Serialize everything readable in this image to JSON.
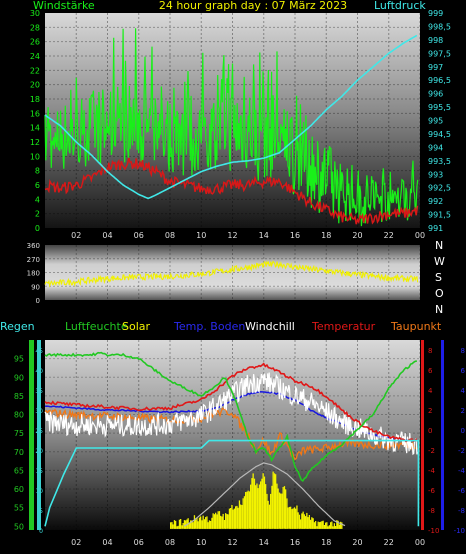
{
  "title": "24 hour graph day : 07 März 2023",
  "colors": {
    "wind": "#19f019",
    "pressure": "#40e8e8",
    "gust_red": "#d81818",
    "winddir": "#f0f000",
    "humidity": "#22c822",
    "solar": "#f2f200",
    "soiltemp": "#1818e0",
    "windchill": "#ffffff",
    "temperature": "#e01818",
    "dewpoint": "#f07818",
    "rain": "#40e8e8",
    "right_axis2": "#1e1ee8"
  },
  "chart_data": [
    {
      "type": "line",
      "left_label": "Windstärke",
      "right_label": "Luftdruck",
      "x_ticks": [
        "02",
        "04",
        "06",
        "08",
        "10",
        "12",
        "14",
        "16",
        "18",
        "20",
        "22",
        "00"
      ],
      "y_left_ticks": [
        "0",
        "2",
        "4",
        "6",
        "8",
        "10",
        "12",
        "14",
        "16",
        "18",
        "20",
        "22",
        "24",
        "26",
        "28",
        "30"
      ],
      "y_left_range": [
        0,
        30
      ],
      "y_right_ticks": [
        "991",
        "991,5",
        "992",
        "992,5",
        "993",
        "993,5",
        "994",
        "994,5",
        "995",
        "995,5",
        "996",
        "996,5",
        "997",
        "997,5",
        "998",
        "998,5",
        "999"
      ],
      "y_right_range": [
        991,
        999
      ],
      "x_range": [
        0,
        24
      ],
      "series": [
        {
          "key": "pressure",
          "axis": "right",
          "x": [
            0,
            1,
            2,
            3,
            4,
            5,
            6,
            6.6,
            7,
            8,
            9,
            10,
            11,
            12,
            13,
            14,
            15,
            16,
            17,
            18,
            19,
            20,
            21,
            22,
            23,
            23.9
          ],
          "values": [
            995.2,
            994.8,
            994.2,
            993.7,
            993.1,
            992.6,
            992.25,
            992.1,
            992.2,
            992.5,
            992.8,
            993.1,
            993.3,
            993.45,
            993.5,
            993.6,
            993.8,
            994.3,
            994.8,
            995.4,
            995.9,
            996.5,
            997.0,
            997.5,
            997.9,
            998.2
          ]
        },
        {
          "key": "wind",
          "axis": "left",
          "x": [
            0,
            1,
            2,
            3,
            4,
            5,
            6,
            7,
            8,
            9,
            10,
            11,
            12,
            13,
            14,
            15,
            16,
            17,
            18,
            19,
            20,
            21,
            22,
            23,
            23.9
          ],
          "values": [
            12,
            13,
            13.5,
            14,
            15,
            15,
            15,
            14,
            13,
            13.5,
            13,
            13,
            14,
            14,
            13,
            13,
            11,
            9,
            7,
            5.5,
            4.5,
            4,
            4.5,
            4.5,
            5
          ],
          "min": [
            7,
            8,
            8,
            8,
            9,
            9,
            9,
            8,
            7,
            7,
            7,
            7,
            7,
            7,
            6,
            6,
            4,
            2,
            1,
            0.5,
            0,
            0,
            0.5,
            1,
            1
          ],
          "max": [
            20,
            24,
            22,
            25,
            26,
            29,
            28,
            25,
            24,
            24,
            25,
            24,
            25,
            25,
            26,
            27,
            22,
            18,
            12,
            9,
            9,
            9,
            9,
            9,
            10
          ]
        },
        {
          "key": "gust_red",
          "axis": "left",
          "x": [
            0,
            1,
            2,
            3,
            4,
            5,
            6,
            7,
            8,
            9,
            10,
            11,
            12,
            13,
            14,
            15,
            16,
            17,
            18,
            19,
            20,
            21,
            22,
            23,
            23.9
          ],
          "values": [
            6,
            5.5,
            6,
            7,
            8.5,
            9,
            9,
            8,
            6.5,
            6,
            5.5,
            5.5,
            6,
            6,
            6.5,
            6.5,
            5,
            3.5,
            2.5,
            1.5,
            1,
            1.5,
            2,
            2,
            2.5
          ]
        }
      ]
    },
    {
      "type": "line",
      "right_letters": [
        "N",
        "W",
        "S",
        "O",
        "N"
      ],
      "y_left_ticks": [
        "0",
        "90",
        "180",
        "270",
        "360"
      ],
      "y_range": [
        0,
        360
      ],
      "x_range": [
        0,
        24
      ],
      "series": [
        {
          "key": "winddir",
          "x": [
            0,
            2,
            4,
            6,
            8,
            10,
            12,
            14,
            15,
            16,
            18,
            20,
            22,
            23.9
          ],
          "values": [
            105,
            120,
            140,
            150,
            155,
            170,
            200,
            230,
            235,
            215,
            190,
            165,
            145,
            135
          ]
        }
      ]
    },
    {
      "type": "line",
      "legend": [
        "Regen",
        "Luftfeuchte",
        "Solar",
        "Temp. Boden",
        "Windchill",
        "Temperatur",
        "Taupunkt"
      ],
      "x_ticks": [
        "02",
        "04",
        "06",
        "08",
        "10",
        "12",
        "14",
        "16",
        "18",
        "20",
        "22",
        "00"
      ],
      "y_left_ticks": [
        "50",
        "55",
        "60",
        "65",
        "70",
        "75",
        "80",
        "85",
        "90",
        "95"
      ],
      "y_left_range": [
        49,
        100
      ],
      "y_right_ticks": [
        "-10",
        "-8",
        "-6",
        "-4",
        "-2",
        "0",
        "2",
        "4",
        "6",
        "8"
      ],
      "y_right_range": [
        -10,
        9
      ],
      "rain_ticks": [
        "0",
        "5",
        "10",
        "15",
        "20",
        "25",
        "30",
        "35",
        "40",
        "45"
      ],
      "x_range": [
        0,
        24
      ],
      "series": [
        {
          "key": "humidity",
          "axis": "left",
          "x": [
            0,
            1,
            2,
            3,
            3.5,
            4,
            5,
            6,
            7,
            8,
            9,
            10,
            11,
            11.5,
            12,
            12.5,
            13,
            13.5,
            14,
            14.5,
            15,
            15.5,
            16,
            16.5,
            17,
            18,
            19,
            20,
            21,
            22,
            23,
            23.9
          ],
          "values": [
            96,
            96,
            96,
            96,
            96.5,
            96,
            96,
            95,
            92,
            89,
            87,
            85,
            88,
            90,
            86,
            80,
            74,
            70,
            71,
            68,
            71,
            74,
            66,
            62,
            65,
            69,
            72,
            76,
            80,
            87,
            92,
            95
          ]
        },
        {
          "key": "rain",
          "axis": "left",
          "x": [
            0,
            0.3,
            1.2,
            2,
            2.6,
            8,
            10,
            10.5,
            11,
            12,
            14,
            16,
            18,
            20,
            22,
            23.8,
            23.9,
            23.9
          ],
          "values": [
            50,
            55,
            64,
            71,
            71,
            71,
            71,
            73,
            73,
            73,
            73,
            73,
            73,
            73,
            73,
            73,
            73,
            50
          ]
        },
        {
          "key": "soiltemp",
          "axis": "right",
          "x": [
            0,
            2,
            4,
            6,
            8,
            10,
            11,
            12,
            13,
            14,
            15,
            16,
            17,
            18,
            19,
            20,
            21,
            22,
            23,
            23.9
          ],
          "values": [
            2.4,
            2.2,
            2.0,
            1.9,
            1.8,
            1.9,
            2.2,
            3.0,
            3.6,
            3.8,
            3.6,
            3.0,
            2.0,
            1.2,
            0.6,
            0.0,
            -0.5,
            -0.8,
            -1.0,
            -1.1
          ]
        },
        {
          "key": "temperature",
          "axis": "right",
          "x": [
            0,
            2,
            4,
            6,
            8,
            10,
            11,
            12,
            13,
            14,
            15,
            16,
            17,
            18,
            19,
            20,
            21,
            22,
            23,
            23.9
          ],
          "values": [
            2.8,
            2.5,
            2.3,
            2.1,
            2.2,
            3.0,
            4.1,
            5.4,
            6.2,
            6.5,
            5.8,
            4.9,
            4.4,
            3.4,
            2.0,
            0.8,
            -0.1,
            -0.7,
            -1.0,
            -1.0
          ]
        },
        {
          "key": "windchill",
          "axis": "right",
          "x": [
            0,
            2,
            4,
            6,
            8,
            10,
            11,
            12,
            13,
            14,
            15,
            16,
            17,
            18,
            19,
            20,
            21,
            22,
            23,
            23.9
          ],
          "values": [
            0.8,
            0.5,
            0.5,
            0.4,
            0.6,
            1.4,
            2.4,
            3.5,
            4.6,
            5.0,
            4.2,
            3.4,
            2.8,
            1.8,
            0.8,
            0.2,
            -0.5,
            -1.0,
            -1.3,
            -1.4
          ]
        },
        {
          "key": "dewpoint",
          "axis": "right",
          "x": [
            0,
            2,
            4,
            6,
            8,
            10,
            11,
            12,
            12.5,
            13,
            13.5,
            14,
            14.5,
            15,
            15.5,
            16,
            16.5,
            17,
            18,
            19,
            20,
            21,
            22,
            23,
            23.9
          ],
          "values": [
            1.8,
            1.5,
            1.4,
            1.2,
            1.0,
            1.2,
            1.8,
            1.8,
            0.5,
            -0.5,
            -2.0,
            -1.0,
            -2.5,
            -0.5,
            -1.5,
            -3.0,
            -2.0,
            -2.0,
            -1.8,
            -1.4,
            -1.4,
            -1.5,
            -1.5,
            -1.5,
            -1.5
          ]
        },
        {
          "key": "solar_curve",
          "axis": "left",
          "x": [
            8.9,
            9.5,
            10.5,
            11.5,
            12.5,
            13.5,
            14,
            14.5,
            15.5,
            16.5,
            17.5,
            18.5,
            19.3
          ],
          "values": [
            50,
            51.5,
            55,
            59,
            63,
            66,
            67,
            66.5,
            64,
            60,
            55.5,
            51.5,
            50
          ]
        },
        {
          "key": "solar",
          "axis": "left",
          "x": [
            8,
            8.5,
            9,
            9.5,
            10,
            10.5,
            11,
            11.5,
            12,
            12.5,
            13,
            13.3,
            13.6,
            14,
            14.3,
            14.6,
            15,
            15.3,
            15.6,
            16,
            16.3,
            16.6,
            17,
            17.5,
            18,
            18.5,
            19
          ],
          "values": [
            50,
            50.5,
            51,
            51.5,
            52,
            51.5,
            53,
            52,
            55,
            56,
            59,
            63,
            60,
            64,
            55,
            65,
            58,
            60,
            54,
            55,
            52,
            53,
            51,
            50.5,
            50.3,
            50.2,
            50
          ]
        }
      ]
    }
  ]
}
